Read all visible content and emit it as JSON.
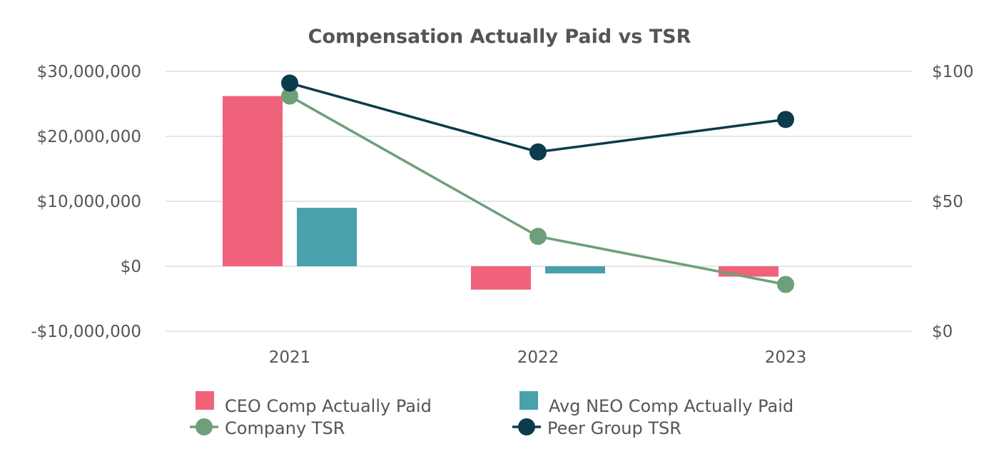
{
  "chart_data": {
    "type": "bar-line-combo",
    "title": "Compensation Actually Paid vs TSR",
    "categories": [
      "2021",
      "2022",
      "2023"
    ],
    "y_left": {
      "ticks": [
        30000000,
        20000000,
        10000000,
        0,
        -10000000
      ],
      "tick_labels": [
        "$30,000,000",
        "$20,000,000",
        "$10,000,000",
        "$0",
        "-$10,000,000"
      ],
      "range": [
        -10000000,
        30000000
      ]
    },
    "y_right": {
      "ticks": [
        100,
        50,
        0
      ],
      "tick_labels": [
        "$100",
        "$50",
        "$0"
      ],
      "range": [
        0,
        100
      ]
    },
    "grid": true,
    "legend_position": "bottom",
    "bar_series": [
      {
        "name": "CEO Comp Actually Paid",
        "color": "#F0627A",
        "values": [
          26200000,
          -3600000,
          -1600000
        ],
        "axis": "left"
      },
      {
        "name": "Avg NEO Comp Actually Paid",
        "color": "#48A1AC",
        "values": [
          9000000,
          -1100000,
          0
        ],
        "axis": "left"
      }
    ],
    "line_series": [
      {
        "name": "Company TSR",
        "color": "#6E9F7B",
        "values": [
          90.5,
          36.5,
          18
        ],
        "axis": "right"
      },
      {
        "name": "Peer Group TSR",
        "color": "#0B3B4C",
        "values": [
          95.5,
          69,
          81.5
        ],
        "axis": "right"
      }
    ]
  }
}
